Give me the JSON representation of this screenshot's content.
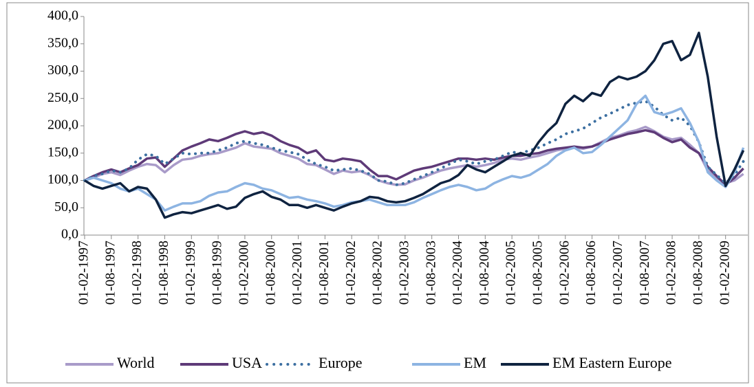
{
  "chart_data": {
    "type": "line",
    "categories": [
      "01-02-1997",
      null,
      null,
      "01-08-1997",
      null,
      null,
      "01-02-1998",
      null,
      null,
      "01-08-1998",
      null,
      null,
      "01-02-1999",
      null,
      null,
      "01-08-1999",
      null,
      null,
      "01-02-2000",
      null,
      null,
      "01-08-2000",
      null,
      null,
      "01-02-2001",
      null,
      null,
      "01-08-2001",
      null,
      null,
      "01-02-2002",
      null,
      null,
      "01-08-2002",
      null,
      null,
      "01-02-2003",
      null,
      null,
      "01-08-2003",
      null,
      null,
      "01-02-2004",
      null,
      null,
      "01-08-2004",
      null,
      null,
      "01-02-2005",
      null,
      null,
      "01-08-2005",
      null,
      null,
      "01-02-2006",
      null,
      null,
      "01-08-2006",
      null,
      null,
      "01-02-2007",
      null,
      null,
      "01-08-2007",
      null,
      null,
      "01-02-2008",
      null,
      null,
      "01-08-2008",
      null,
      null,
      "01-02-2009",
      null,
      null
    ],
    "series": [
      {
        "name": "World",
        "color": "#a99bc9",
        "dash": false,
        "values": [
          100,
          105,
          112,
          115,
          110,
          118,
          125,
          130,
          128,
          115,
          128,
          138,
          140,
          145,
          148,
          150,
          155,
          160,
          168,
          162,
          160,
          158,
          150,
          145,
          140,
          130,
          128,
          120,
          112,
          118,
          115,
          117,
          110,
          100,
          95,
          92,
          93,
          100,
          105,
          112,
          118,
          122,
          125,
          128,
          125,
          128,
          132,
          138,
          140,
          138,
          142,
          145,
          150,
          155,
          158,
          160,
          158,
          162,
          170,
          178,
          182,
          188,
          192,
          198,
          190,
          180,
          175,
          178,
          165,
          150,
          118,
          105,
          95,
          100,
          112
        ]
      },
      {
        "name": "USA",
        "color": "#5e3a78",
        "dash": false,
        "values": [
          100,
          108,
          115,
          120,
          115,
          122,
          128,
          140,
          142,
          125,
          140,
          155,
          162,
          168,
          175,
          172,
          178,
          185,
          190,
          185,
          188,
          182,
          172,
          165,
          160,
          150,
          155,
          138,
          135,
          140,
          138,
          135,
          120,
          108,
          108,
          102,
          110,
          118,
          122,
          125,
          130,
          135,
          140,
          140,
          138,
          140,
          138,
          142,
          145,
          145,
          148,
          150,
          155,
          158,
          160,
          162,
          160,
          162,
          168,
          175,
          180,
          185,
          188,
          192,
          188,
          178,
          170,
          175,
          160,
          150,
          125,
          108,
          92,
          105,
          122
        ]
      },
      {
        "name": "Europe",
        "color": "#3c6fa1",
        "dash": true,
        "values": [
          100,
          108,
          112,
          118,
          115,
          122,
          138,
          148,
          145,
          130,
          140,
          150,
          148,
          150,
          150,
          155,
          160,
          168,
          172,
          168,
          165,
          160,
          155,
          152,
          148,
          138,
          130,
          125,
          118,
          120,
          122,
          118,
          112,
          100,
          98,
          92,
          95,
          102,
          108,
          115,
          122,
          130,
          138,
          135,
          130,
          135,
          138,
          145,
          152,
          150,
          155,
          160,
          168,
          175,
          185,
          190,
          195,
          205,
          215,
          222,
          230,
          238,
          242,
          245,
          235,
          220,
          210,
          215,
          200,
          170,
          125,
          110,
          95,
          110,
          135
        ]
      },
      {
        "name": "EM",
        "color": "#8db4e2",
        "dash": false,
        "values": [
          100,
          105,
          100,
          95,
          85,
          80,
          85,
          75,
          65,
          45,
          52,
          58,
          58,
          62,
          72,
          78,
          80,
          88,
          95,
          92,
          85,
          82,
          75,
          68,
          70,
          65,
          62,
          58,
          52,
          55,
          60,
          62,
          65,
          60,
          55,
          55,
          55,
          60,
          68,
          75,
          82,
          88,
          92,
          88,
          82,
          85,
          95,
          102,
          108,
          105,
          110,
          120,
          130,
          145,
          155,
          160,
          150,
          152,
          165,
          180,
          195,
          210,
          240,
          255,
          225,
          220,
          225,
          232,
          205,
          170,
          115,
          100,
          88,
          115,
          160
        ]
      },
      {
        "name": "EM Eastern Europe",
        "color": "#0f2340",
        "dash": false,
        "values": [
          100,
          90,
          85,
          90,
          95,
          80,
          88,
          85,
          65,
          32,
          38,
          42,
          40,
          45,
          50,
          55,
          48,
          52,
          68,
          75,
          80,
          70,
          65,
          55,
          55,
          50,
          55,
          50,
          45,
          52,
          58,
          62,
          70,
          68,
          62,
          60,
          62,
          68,
          75,
          85,
          95,
          100,
          110,
          128,
          120,
          115,
          125,
          135,
          145,
          150,
          145,
          170,
          190,
          205,
          240,
          255,
          245,
          260,
          255,
          280,
          290,
          285,
          290,
          300,
          320,
          350,
          355,
          320,
          330,
          370,
          290,
          180,
          90,
          120,
          155
        ]
      }
    ],
    "ylim": [
      0,
      400
    ],
    "yticks": [
      {
        "value": 0,
        "label": "0,0"
      },
      {
        "value": 50,
        "label": "50,0"
      },
      {
        "value": 100,
        "label": "100,0"
      },
      {
        "value": 150,
        "label": "150,0"
      },
      {
        "value": 200,
        "label": "200,0"
      },
      {
        "value": 250,
        "label": "250,0"
      },
      {
        "value": 300,
        "label": "300,0"
      },
      {
        "value": 350,
        "label": "350,0"
      },
      {
        "value": 400,
        "label": "400,0"
      }
    ],
    "grid": false,
    "legend": "bottom"
  }
}
